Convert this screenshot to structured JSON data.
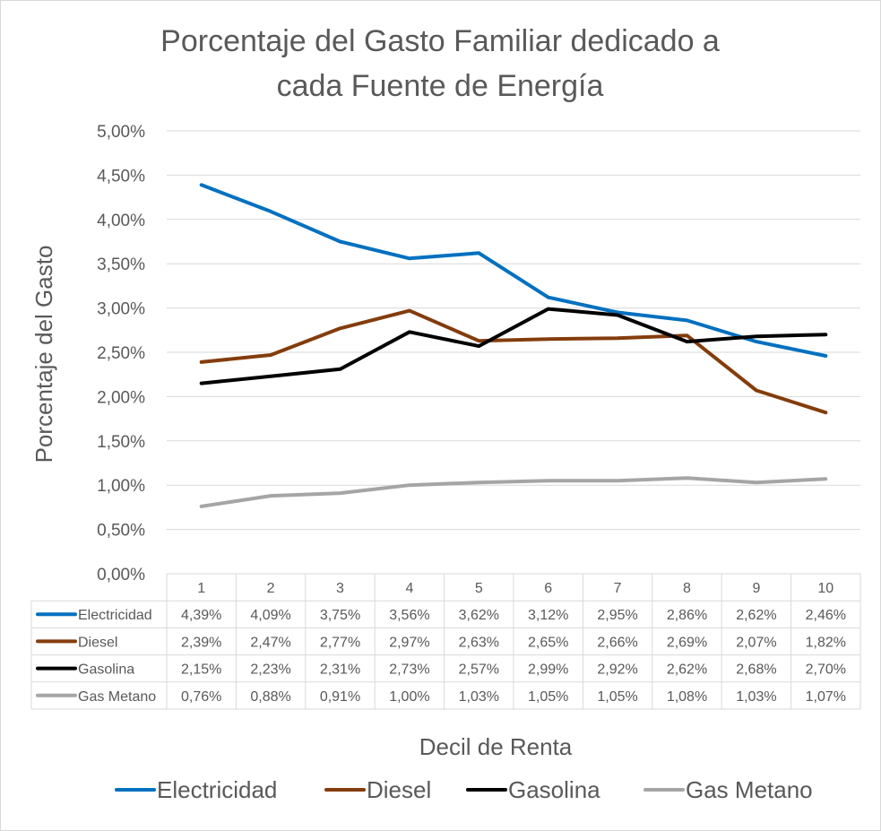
{
  "chart_data": {
    "type": "line",
    "title_lines": [
      "Porcentaje del Gasto Familiar dedicado a",
      "cada Fuente de Energía"
    ],
    "xlabel": "Decil de Renta",
    "ylabel": "Porcentaje del Gasto",
    "categories": [
      "1",
      "2",
      "3",
      "4",
      "5",
      "6",
      "7",
      "8",
      "9",
      "10"
    ],
    "ylim": [
      0,
      5
    ],
    "yticks": [
      "0,00%",
      "0,50%",
      "1,00%",
      "1,50%",
      "2,00%",
      "2,50%",
      "3,00%",
      "3,50%",
      "4,00%",
      "4,50%",
      "5,00%"
    ],
    "grid": true,
    "legend_position": "bottom",
    "data_table": true,
    "series": [
      {
        "name": "Electricidad",
        "color": "#0070C0",
        "values": [
          4.39,
          4.09,
          3.75,
          3.56,
          3.62,
          3.12,
          2.95,
          2.86,
          2.62,
          2.46
        ],
        "labels": [
          "4,39%",
          "4,09%",
          "3,75%",
          "3,56%",
          "3,62%",
          "3,12%",
          "2,95%",
          "2,86%",
          "2,62%",
          "2,46%"
        ]
      },
      {
        "name": "Diesel",
        "color": "#843C0C",
        "values": [
          2.39,
          2.47,
          2.77,
          2.97,
          2.63,
          2.65,
          2.66,
          2.69,
          2.07,
          1.82
        ],
        "labels": [
          "2,39%",
          "2,47%",
          "2,77%",
          "2,97%",
          "2,63%",
          "2,65%",
          "2,66%",
          "2,69%",
          "2,07%",
          "1,82%"
        ]
      },
      {
        "name": "Gasolina",
        "color": "#000000",
        "values": [
          2.15,
          2.23,
          2.31,
          2.73,
          2.57,
          2.99,
          2.92,
          2.62,
          2.68,
          2.7
        ],
        "labels": [
          "2,15%",
          "2,23%",
          "2,31%",
          "2,73%",
          "2,57%",
          "2,99%",
          "2,92%",
          "2,62%",
          "2,68%",
          "2,70%"
        ]
      },
      {
        "name": "Gas Metano",
        "color": "#A5A5A5",
        "values": [
          0.76,
          0.88,
          0.91,
          1.0,
          1.03,
          1.05,
          1.05,
          1.08,
          1.03,
          1.07
        ],
        "labels": [
          "0,76%",
          "0,88%",
          "0,91%",
          "1,00%",
          "1,03%",
          "1,05%",
          "1,05%",
          "1,08%",
          "1,03%",
          "1,07%"
        ]
      }
    ]
  }
}
